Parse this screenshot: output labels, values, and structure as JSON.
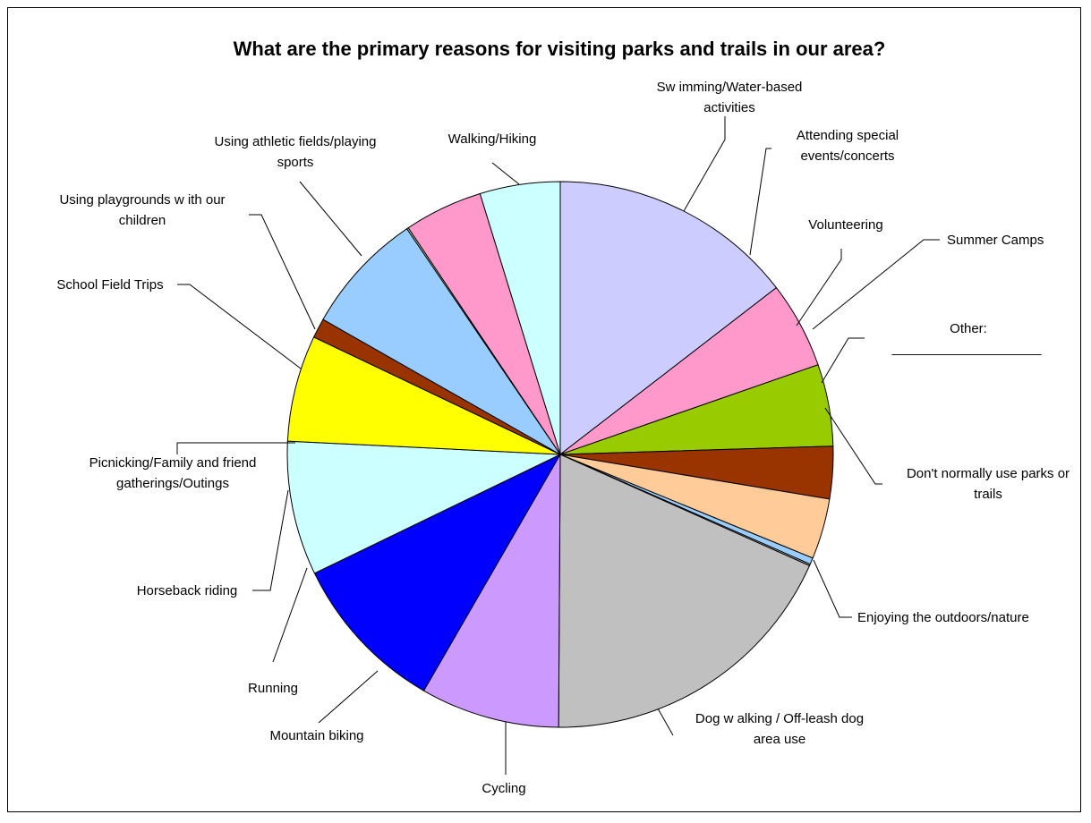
{
  "chart_data": {
    "type": "pie",
    "title": "What are the primary reasons for visiting parks and trails in our area?",
    "slices": [
      {
        "label": "Walking/Hiking",
        "value": 15.0,
        "color": "#CCCCFF"
      },
      {
        "label": "Swimming/Water-based activities",
        "value": 5.3,
        "color": "#FF99CC"
      },
      {
        "label": "Attending special events/concerts",
        "value": 5.0,
        "color": "#99CC00"
      },
      {
        "label": "Volunteering",
        "value": 3.2,
        "color": "#993300"
      },
      {
        "label": "Summer Camps",
        "value": 3.7,
        "color": "#FFCC99"
      },
      {
        "label": "Other: ____________________",
        "value": 0.4,
        "color": "#99CCFF"
      },
      {
        "label": "Don't normally use parks or trails",
        "value": 0.1,
        "color": "#B0B0B0"
      },
      {
        "label": "Enjoying the outdoors/nature",
        "value": 19.0,
        "color": "#C0C0C0"
      },
      {
        "label": "Dog walking / Off-leash dog area use",
        "value": 8.5,
        "color": "#CC99FF"
      },
      {
        "label": "Cycling",
        "value": 9.8,
        "color": "#0000FF"
      },
      {
        "label": "Mountain biking",
        "value": 8.2,
        "color": "#CCFFFF"
      },
      {
        "label": "Running",
        "value": 6.5,
        "color": "#FFFF00"
      },
      {
        "label": "Horseback riding",
        "value": 1.2,
        "color": "#993300"
      },
      {
        "label": "Picnicking/Family and friend gatherings/Outings",
        "value": 7.5,
        "color": "#99CCFF"
      },
      {
        "label": "School Field Trips",
        "value": 0.1,
        "color": "#CCFFCC"
      },
      {
        "label": "Using playgrounds with our children",
        "value": 4.8,
        "color": "#FF99CC"
      },
      {
        "label": "Using athletic fields/playing sports",
        "value": 4.9,
        "color": "#CCFFFF"
      }
    ]
  },
  "labels": {
    "walking": "Walking/Hiking",
    "swimming_1": "Sw imming/Water-based",
    "swimming_2": "activities",
    "events_1": "Attending special",
    "events_2": "events/concerts",
    "volunteering": "Volunteering",
    "summer_camps": "Summer Camps",
    "other_1": "Other:",
    "other_2": "____________________",
    "dont_use_1": "Don't normally use parks or",
    "dont_use_2": "trails",
    "outdoors": "Enjoying the outdoors/nature",
    "dog_1": "Dog w alking / Off-leash dog",
    "dog_2": "area use",
    "cycling": "Cycling",
    "mountain": "Mountain biking",
    "running": "Running",
    "horseback": "Horseback riding",
    "picnic_1": "Picnicking/Family and friend",
    "picnic_2": "gatherings/Outings",
    "school": "School Field Trips",
    "playgrounds_1": "Using playgrounds w ith our",
    "playgrounds_2": "children",
    "athletic_1": "Using athletic fields/playing",
    "athletic_2": "sports"
  }
}
